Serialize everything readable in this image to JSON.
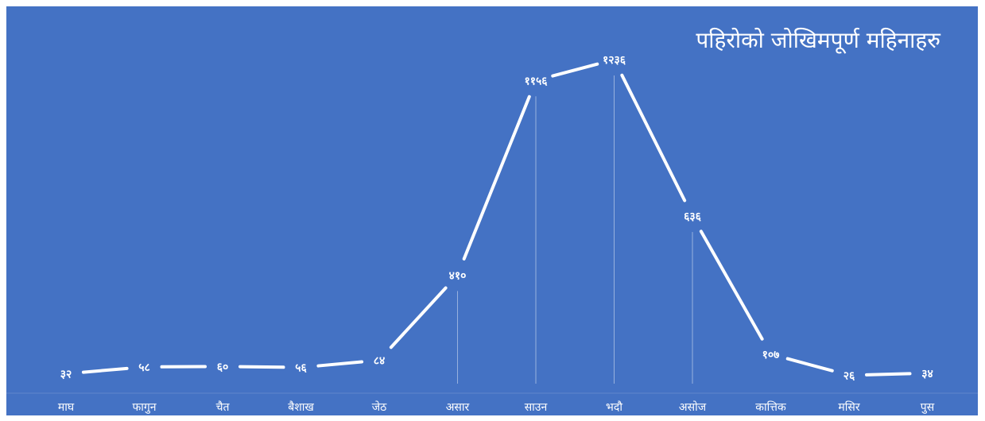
{
  "chart_data": {
    "type": "line",
    "title": "पहिरोको जोखिमपूर्ण महिनाहरु",
    "categories": [
      "माघ",
      "फागुन",
      "चैत",
      "बैशाख",
      "जेठ",
      "असार",
      "साउन",
      "भदौ",
      "असोज",
      "कात्तिक",
      "मसिर",
      "पुस"
    ],
    "values": [
      32,
      58,
      60,
      56,
      84,
      410,
      1156,
      1236,
      636,
      107,
      26,
      34
    ],
    "data_labels": [
      "३२",
      "५८",
      "६०",
      "५६",
      "८४",
      "४१०",
      "११५६",
      "१२३६",
      "६३६",
      "१०७",
      "२६",
      "३४"
    ],
    "xlabel": "",
    "ylabel": "",
    "legend": "none",
    "grid": false,
    "colors": {
      "background": "#4472c4",
      "line": "#ffffff",
      "text": "#ffffff"
    }
  }
}
